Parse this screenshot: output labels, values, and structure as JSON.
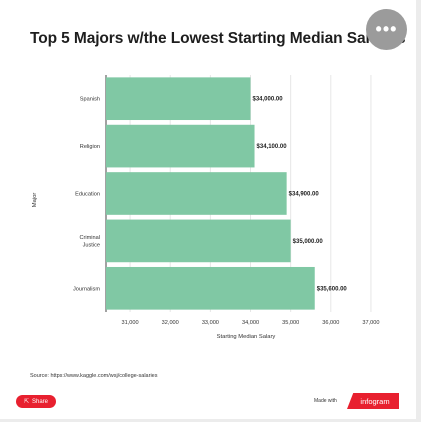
{
  "title": "Top 5 Majors w/the Lowest Starting Median Salaries",
  "more_button_label": "•••",
  "source_text": "Source: https://www.kaggle.com/wsj/college-salaries",
  "share_label": "Share",
  "share_icon": "share-icon",
  "made_with_label": "Made with",
  "brand_label": "infogram",
  "colors": {
    "bar": "#80c8a4",
    "accent": "#e8202f",
    "more_button": "#9b9b9b"
  },
  "chart_data": {
    "type": "bar",
    "orientation": "horizontal",
    "title": "Top 5 Majors w/the Lowest Starting Median Salaries",
    "xlabel": "Starting Median Salary",
    "ylabel": "Major",
    "categories": [
      [
        "Spanish"
      ],
      [
        "Religion"
      ],
      [
        "Education"
      ],
      [
        "Criminal",
        "Justice"
      ],
      [
        "Journalism"
      ]
    ],
    "values": [
      34000,
      34100,
      34900,
      35000,
      35600
    ],
    "data_labels": [
      "$34,000.00",
      "$34,100.00",
      "$34,900.00",
      "$35,000.00",
      "$35,600.00"
    ],
    "xlim": [
      30400,
      37400
    ],
    "xticks": [
      31000,
      32000,
      33000,
      34000,
      35000,
      36000,
      37000
    ],
    "xtick_labels": [
      "31,000",
      "32,000",
      "33,000",
      "34,000",
      "35,000",
      "36,000",
      "37,000"
    ],
    "grid": true
  }
}
